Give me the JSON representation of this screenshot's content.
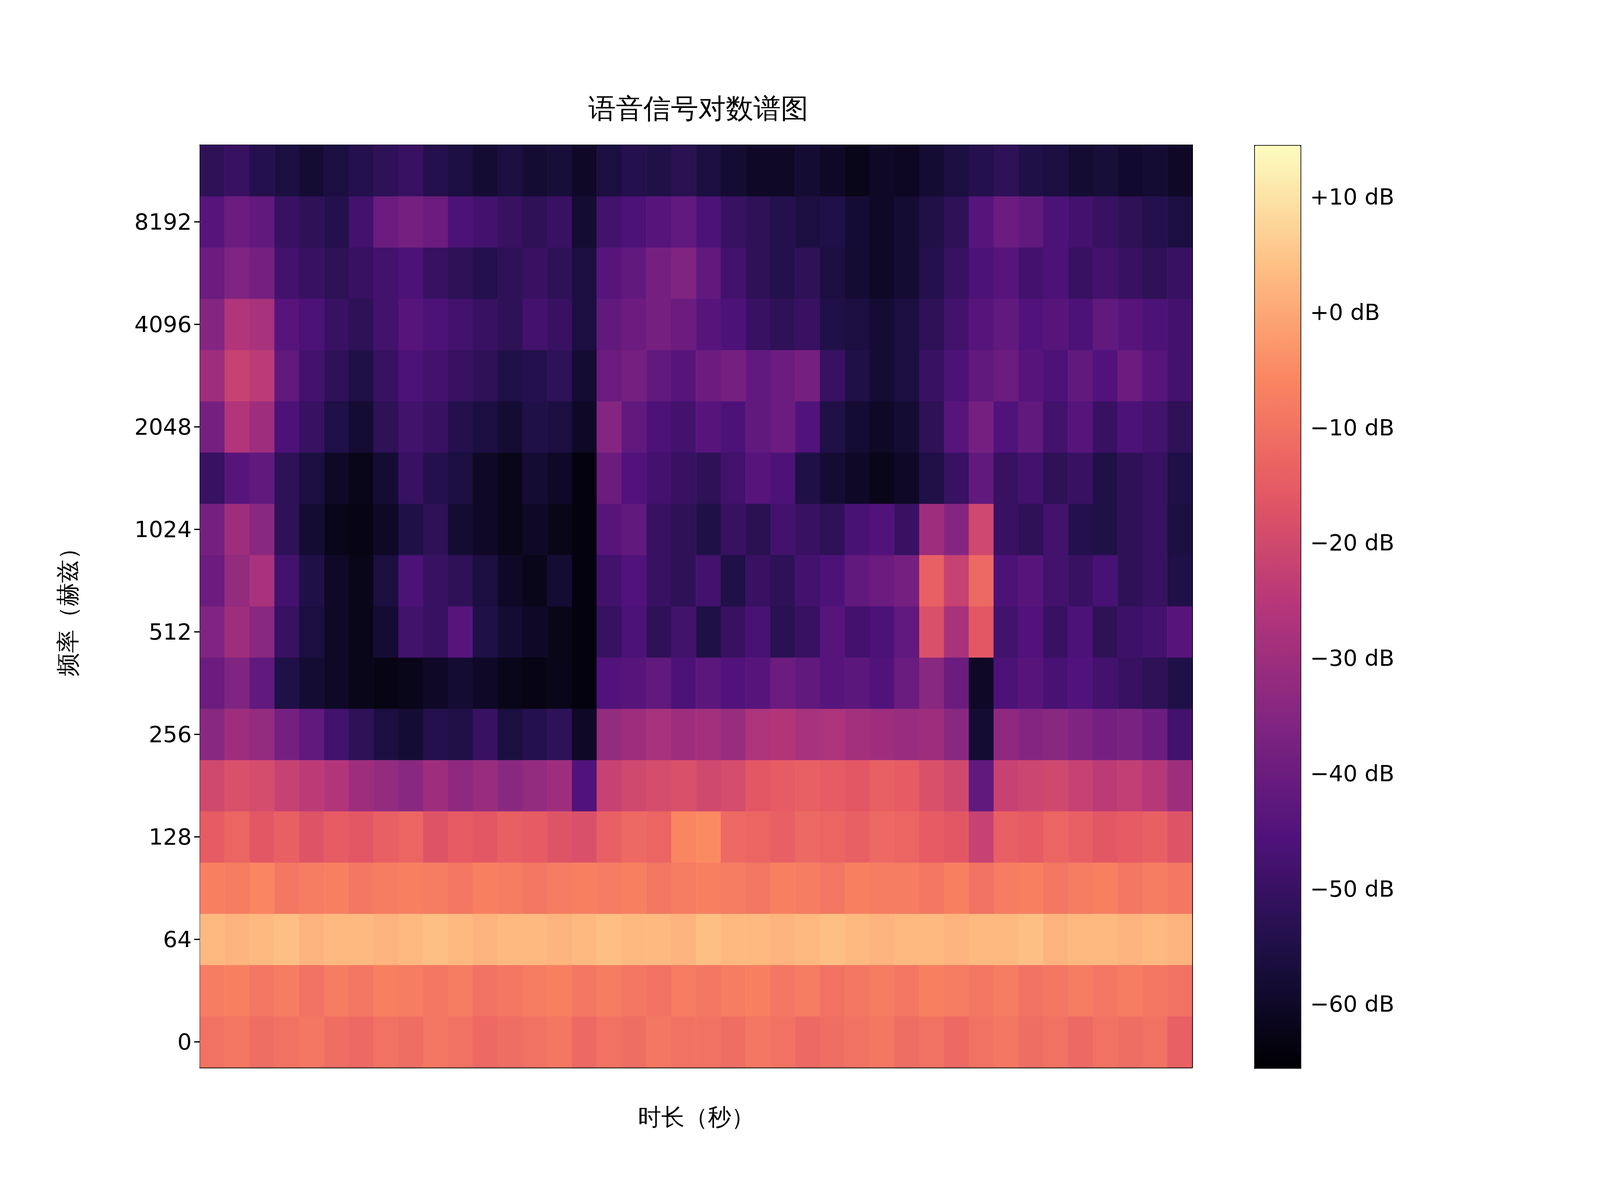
{
  "chart_data": {
    "type": "heatmap",
    "title": "语音信号对数谱图",
    "xlabel": "时长（秒）",
    "ylabel": "频率（赫兹）",
    "tick_labels": "y",
    "categories": [
      null,
      null,
      null,
      null,
      null,
      null,
      null,
      null,
      null,
      null,
      null,
      null,
      null,
      null,
      null,
      null,
      null,
      null,
      null,
      null,
      null,
      null,
      null,
      null,
      null,
      null,
      null,
      null,
      null,
      null,
      null,
      null,
      null,
      null,
      null,
      null,
      null,
      null,
      null,
      null
    ],
    "y_categories": [
      0,
      null,
      64,
      null,
      128,
      null,
      256,
      null,
      512,
      null,
      1024,
      null,
      2048,
      null,
      4096,
      null,
      8192,
      null
    ],
    "cells": [
      [
        -10,
        -9,
        -11,
        -10,
        -9,
        -11,
        -12,
        -10,
        -11,
        -9,
        -10,
        -12,
        -11,
        -10,
        -9,
        -12,
        -10,
        -11,
        -9,
        -10,
        -10,
        -11,
        -9,
        -10,
        -12,
        -11,
        -10,
        -9,
        -11,
        -10,
        -12,
        -10,
        -9,
        -11,
        -10,
        -12,
        -10,
        -11,
        -10,
        -14
      ],
      [
        -8,
        -7,
        -9,
        -8,
        -10,
        -8,
        -9,
        -7,
        -8,
        -9,
        -8,
        -10,
        -9,
        -8,
        -7,
        -9,
        -8,
        -9,
        -10,
        -8,
        -9,
        -8,
        -7,
        -9,
        -8,
        -10,
        -9,
        -8,
        -9,
        -7,
        -8,
        -9,
        -8,
        -10,
        -9,
        -8,
        -9,
        -8,
        -9,
        -10
      ],
      [
        3,
        2,
        3,
        4,
        2,
        3,
        3,
        2,
        3,
        4,
        3,
        2,
        3,
        3,
        2,
        3,
        4,
        3,
        3,
        2,
        4,
        3,
        3,
        2,
        3,
        4,
        3,
        2,
        3,
        3,
        2,
        3,
        3,
        4,
        2,
        3,
        3,
        2,
        3,
        2
      ],
      [
        -7,
        -8,
        -6,
        -9,
        -8,
        -7,
        -9,
        -8,
        -7,
        -8,
        -9,
        -7,
        -8,
        -9,
        -8,
        -7,
        -8,
        -7,
        -9,
        -8,
        -7,
        -8,
        -9,
        -7,
        -8,
        -9,
        -7,
        -8,
        -8,
        -9,
        -7,
        -10,
        -8,
        -7,
        -9,
        -8,
        -7,
        -9,
        -8,
        -9
      ],
      [
        -15,
        -13,
        -16,
        -14,
        -17,
        -15,
        -16,
        -14,
        -13,
        -17,
        -15,
        -16,
        -14,
        -15,
        -17,
        -18,
        -14,
        -12,
        -13,
        -6,
        -5,
        -12,
        -13,
        -14,
        -12,
        -13,
        -14,
        -12,
        -13,
        -15,
        -16,
        -22,
        -14,
        -15,
        -13,
        -14,
        -16,
        -15,
        -14,
        -17
      ],
      [
        -20,
        -18,
        -19,
        -22,
        -24,
        -26,
        -30,
        -32,
        -34,
        -30,
        -33,
        -31,
        -34,
        -32,
        -30,
        -45,
        -22,
        -20,
        -19,
        -18,
        -20,
        -19,
        -16,
        -15,
        -14,
        -15,
        -16,
        -14,
        -15,
        -18,
        -20,
        -42,
        -22,
        -21,
        -20,
        -22,
        -24,
        -23,
        -25,
        -30
      ],
      [
        -34,
        -30,
        -32,
        -38,
        -42,
        -48,
        -52,
        -56,
        -58,
        -54,
        -55,
        -50,
        -56,
        -54,
        -52,
        -60,
        -32,
        -30,
        -28,
        -30,
        -29,
        -31,
        -27,
        -26,
        -28,
        -27,
        -29,
        -30,
        -31,
        -30,
        -34,
        -58,
        -33,
        -35,
        -34,
        -36,
        -38,
        -37,
        -40,
        -48
      ],
      [
        -40,
        -36,
        -42,
        -55,
        -58,
        -60,
        -62,
        -63,
        -62,
        -60,
        -58,
        -60,
        -62,
        -63,
        -62,
        -64,
        -45,
        -44,
        -42,
        -46,
        -43,
        -45,
        -44,
        -40,
        -42,
        -44,
        -43,
        -45,
        -40,
        -34,
        -40,
        -60,
        -46,
        -44,
        -47,
        -45,
        -48,
        -50,
        -52,
        -55
      ],
      [
        -36,
        -30,
        -34,
        -50,
        -56,
        -60,
        -62,
        -58,
        -48,
        -50,
        -44,
        -55,
        -58,
        -60,
        -62,
        -64,
        -50,
        -46,
        -52,
        -48,
        -55,
        -50,
        -47,
        -53,
        -50,
        -44,
        -48,
        -46,
        -42,
        -18,
        -28,
        -16,
        -48,
        -45,
        -50,
        -46,
        -52,
        -49,
        -48,
        -44
      ],
      [
        -40,
        -32,
        -28,
        -48,
        -55,
        -60,
        -62,
        -56,
        -46,
        -50,
        -52,
        -56,
        -60,
        -62,
        -58,
        -64,
        -48,
        -45,
        -50,
        -52,
        -48,
        -55,
        -50,
        -52,
        -48,
        -46,
        -42,
        -40,
        -38,
        -14,
        -22,
        -12,
        -46,
        -44,
        -48,
        -50,
        -47,
        -52,
        -50,
        -55
      ],
      [
        -38,
        -30,
        -34,
        -52,
        -58,
        -62,
        -63,
        -60,
        -55,
        -52,
        -58,
        -60,
        -62,
        -60,
        -62,
        -64,
        -44,
        -42,
        -50,
        -52,
        -55,
        -50,
        -53,
        -48,
        -50,
        -52,
        -47,
        -45,
        -50,
        -30,
        -35,
        -20,
        -50,
        -52,
        -48,
        -54,
        -55,
        -52,
        -50,
        -56
      ],
      [
        -50,
        -44,
        -42,
        -52,
        -56,
        -60,
        -62,
        -58,
        -50,
        -54,
        -56,
        -60,
        -62,
        -58,
        -60,
        -64,
        -40,
        -45,
        -48,
        -50,
        -52,
        -48,
        -44,
        -46,
        -55,
        -58,
        -60,
        -62,
        -60,
        -55,
        -50,
        -42,
        -50,
        -48,
        -52,
        -50,
        -55,
        -52,
        -50,
        -55
      ],
      [
        -38,
        -26,
        -30,
        -46,
        -50,
        -55,
        -58,
        -52,
        -48,
        -50,
        -54,
        -56,
        -58,
        -55,
        -56,
        -60,
        -35,
        -42,
        -46,
        -48,
        -44,
        -46,
        -42,
        -40,
        -45,
        -55,
        -58,
        -60,
        -58,
        -52,
        -44,
        -38,
        -45,
        -42,
        -48,
        -44,
        -50,
        -46,
        -48,
        -52
      ],
      [
        -30,
        -22,
        -24,
        -42,
        -48,
        -52,
        -55,
        -50,
        -46,
        -48,
        -50,
        -52,
        -55,
        -54,
        -52,
        -58,
        -40,
        -38,
        -42,
        -44,
        -40,
        -38,
        -42,
        -40,
        -38,
        -50,
        -55,
        -58,
        -56,
        -50,
        -46,
        -42,
        -40,
        -44,
        -46,
        -42,
        -45,
        -40,
        -44,
        -48
      ],
      [
        -35,
        -26,
        -28,
        -44,
        -46,
        -50,
        -52,
        -48,
        -44,
        -46,
        -48,
        -50,
        -52,
        -48,
        -50,
        -56,
        -42,
        -40,
        -38,
        -40,
        -44,
        -46,
        -50,
        -52,
        -50,
        -55,
        -56,
        -58,
        -56,
        -52,
        -48,
        -44,
        -42,
        -45,
        -44,
        -46,
        -42,
        -44,
        -46,
        -48
      ],
      [
        -40,
        -36,
        -38,
        -48,
        -50,
        -52,
        -50,
        -48,
        -46,
        -50,
        -52,
        -54,
        -52,
        -50,
        -52,
        -56,
        -44,
        -42,
        -38,
        -36,
        -42,
        -48,
        -52,
        -54,
        -52,
        -56,
        -58,
        -60,
        -58,
        -54,
        -50,
        -46,
        -44,
        -48,
        -46,
        -50,
        -48,
        -50,
        -52,
        -50
      ],
      [
        -44,
        -40,
        -42,
        -50,
        -52,
        -54,
        -48,
        -40,
        -38,
        -40,
        -46,
        -48,
        -50,
        -52,
        -50,
        -58,
        -48,
        -46,
        -44,
        -42,
        -46,
        -50,
        -52,
        -54,
        -56,
        -55,
        -58,
        -60,
        -58,
        -55,
        -52,
        -44,
        -40,
        -42,
        -46,
        -48,
        -50,
        -52,
        -54,
        -56
      ],
      [
        -52,
        -50,
        -54,
        -56,
        -58,
        -56,
        -54,
        -52,
        -50,
        -54,
        -56,
        -58,
        -56,
        -58,
        -57,
        -60,
        -56,
        -54,
        -55,
        -53,
        -56,
        -58,
        -60,
        -60,
        -58,
        -60,
        -62,
        -60,
        -61,
        -58,
        -56,
        -54,
        -52,
        -55,
        -56,
        -58,
        -57,
        -59,
        -58,
        -60
      ]
    ],
    "colorbar": {
      "range": [
        -65.5,
        14.5
      ],
      "ticks": [
        {
          "value": 10,
          "label": "+10 dB"
        },
        {
          "value": 0,
          "label": "+0 dB"
        },
        {
          "value": -10,
          "label": "−10 dB"
        },
        {
          "value": -20,
          "label": "−20 dB"
        },
        {
          "value": -30,
          "label": "−30 dB"
        },
        {
          "value": -40,
          "label": "−40 dB"
        },
        {
          "value": -50,
          "label": "−50 dB"
        },
        {
          "value": -60,
          "label": "−60 dB"
        }
      ]
    }
  }
}
